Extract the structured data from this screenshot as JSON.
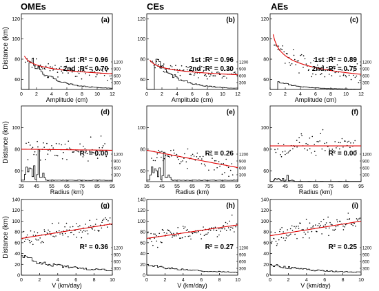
{
  "column_titles": [
    "OMEs",
    "CEs",
    "AEs"
  ],
  "row_ylabel": "Distance  (km)",
  "row_xlabels": [
    "Amplitude  (cm)",
    "Radius  (km)",
    "V  (km/day)"
  ],
  "count_ticks": [
    "300",
    "600",
    "900",
    "1200"
  ],
  "colors": {
    "fit": "#e00000",
    "points": "#000000",
    "hist": "#000000"
  },
  "chart_data": [
    {
      "id": "a",
      "type": "scatter",
      "row": 0,
      "col": 0,
      "panel_label": "(a)",
      "xlabel": "Amplitude  (cm)",
      "xlim": [
        0,
        12
      ],
      "xticks": [
        0,
        2,
        4,
        6,
        8,
        10,
        12
      ],
      "ylim": [
        50,
        125
      ],
      "yticks": [
        60,
        80,
        100,
        120
      ],
      "fit": {
        "kind": "power",
        "a": 78,
        "b": -0.07,
        "x0": 0.4,
        "x1": 12
      },
      "scatter": {
        "seed": 11,
        "n": 80,
        "x0": 0.5,
        "x1": 12,
        "noise": 3.5
      },
      "annotations": [
        "1st :R² = 0.96",
        "2nd :R² = 0.70"
      ],
      "hist": {
        "kind": "amp",
        "peak": 1200
      }
    },
    {
      "id": "b",
      "type": "scatter",
      "row": 0,
      "col": 1,
      "panel_label": "(b)",
      "xlabel": "Amplitude  (cm)",
      "xlim": [
        0,
        12
      ],
      "xticks": [
        0,
        2,
        4,
        6,
        8,
        10,
        12
      ],
      "ylim": [
        50,
        125
      ],
      "yticks": [
        60,
        80,
        100,
        120
      ],
      "fit": {
        "kind": "power",
        "a": 75,
        "b": -0.06,
        "x0": 0.4,
        "x1": 12
      },
      "scatter": {
        "seed": 23,
        "n": 80,
        "x0": 0.5,
        "x1": 12,
        "noise": 3.5
      },
      "annotations": [
        "1st :R² = 0.96",
        "2nd :R² = 0.30"
      ],
      "hist": {
        "kind": "amp",
        "peak": 1200
      }
    },
    {
      "id": "c",
      "type": "scatter",
      "row": 0,
      "col": 2,
      "panel_label": "(c)",
      "xlabel": "Amplitude  (cm)",
      "xlim": [
        0,
        12
      ],
      "xticks": [
        0,
        2,
        4,
        6,
        8,
        10,
        12
      ],
      "ylim": [
        50,
        125
      ],
      "yticks": [
        60,
        80,
        100,
        120
      ],
      "fit": {
        "kind": "power",
        "a": 92,
        "b": -0.14,
        "x0": 0.4,
        "x1": 12
      },
      "scatter": {
        "seed": 37,
        "n": 80,
        "x0": 0.5,
        "x1": 12,
        "noise": 6
      },
      "annotations": [
        "1st :R² = 0.89",
        "2nd :R² = 0.75"
      ],
      "hist": {
        "kind": "amp",
        "peak": 300
      }
    },
    {
      "id": "d",
      "type": "scatter",
      "row": 1,
      "col": 0,
      "panel_label": "(d)",
      "xlabel": "Radius  (km)",
      "xlim": [
        35,
        95
      ],
      "xticks": [
        35,
        45,
        55,
        65,
        75,
        85,
        95
      ],
      "ylim": [
        50,
        120
      ],
      "yticks": [
        60,
        80,
        100
      ],
      "fit": {
        "kind": "linear",
        "y0": 80,
        "y1": 79,
        "x0": 35,
        "x1": 95
      },
      "scatter": {
        "seed": 41,
        "n": 70,
        "x0": 38,
        "x1": 92,
        "noise": 6
      },
      "annotations": [
        "R² = 0.00"
      ],
      "hist": {
        "kind": "radius",
        "peak": 1200
      }
    },
    {
      "id": "e",
      "type": "scatter",
      "row": 1,
      "col": 1,
      "panel_label": "(e)",
      "xlabel": "Radius  (km)",
      "xlim": [
        35,
        95
      ],
      "xticks": [
        35,
        45,
        55,
        65,
        75,
        85,
        95
      ],
      "ylim": [
        50,
        120
      ],
      "yticks": [
        60,
        80,
        100
      ],
      "fit": {
        "kind": "linear",
        "y0": 79,
        "y1": 63,
        "x0": 35,
        "x1": 95
      },
      "scatter": {
        "seed": 53,
        "n": 70,
        "x0": 38,
        "x1": 92,
        "noise": 6
      },
      "annotations": [
        "R² = 0.26"
      ],
      "hist": {
        "kind": "radius",
        "peak": 1200
      }
    },
    {
      "id": "f",
      "type": "scatter",
      "row": 1,
      "col": 2,
      "panel_label": "(f)",
      "xlabel": "Radius  (km)",
      "xlim": [
        35,
        95
      ],
      "xticks": [
        35,
        45,
        55,
        65,
        75,
        85,
        95
      ],
      "ylim": [
        50,
        120
      ],
      "yticks": [
        60,
        80,
        100
      ],
      "fit": {
        "kind": "linear",
        "y0": 83,
        "y1": 83,
        "x0": 35,
        "x1": 95
      },
      "scatter": {
        "seed": 67,
        "n": 70,
        "x0": 38,
        "x1": 92,
        "noise": 7
      },
      "annotations": [
        "R² = 0.00"
      ],
      "hist": {
        "kind": "radius",
        "peak": 250
      }
    },
    {
      "id": "g",
      "type": "scatter",
      "row": 2,
      "col": 0,
      "panel_label": "(g)",
      "xlabel": "V  (km/day)",
      "xlim": [
        0,
        10
      ],
      "xticks": [
        0,
        2,
        4,
        6,
        8,
        10
      ],
      "ylim": [
        0,
        140
      ],
      "yticks": [
        0,
        20,
        40,
        60,
        80,
        100,
        120,
        140
      ],
      "fit": {
        "kind": "linear",
        "y0": 68,
        "y1": 95,
        "x0": 0,
        "x1": 10
      },
      "scatter": {
        "seed": 71,
        "n": 100,
        "x0": 0.1,
        "x1": 9.9,
        "noise": 9
      },
      "annotations": [
        "R² = 0.36"
      ],
      "hist": {
        "kind": "vel",
        "peak": 1200
      }
    },
    {
      "id": "h",
      "type": "scatter",
      "row": 2,
      "col": 1,
      "panel_label": "(h)",
      "xlabel": "V  (km/day)",
      "xlim": [
        0,
        10
      ],
      "xticks": [
        0,
        2,
        4,
        6,
        8,
        10
      ],
      "ylim": [
        0,
        140
      ],
      "yticks": [
        0,
        20,
        40,
        60,
        80,
        100,
        120,
        140
      ],
      "fit": {
        "kind": "linear",
        "y0": 68,
        "y1": 93,
        "x0": 0,
        "x1": 10
      },
      "scatter": {
        "seed": 83,
        "n": 100,
        "x0": 0.1,
        "x1": 9.9,
        "noise": 9
      },
      "annotations": [
        "R² = 0.27"
      ],
      "hist": {
        "kind": "vel",
        "peak": 700
      }
    },
    {
      "id": "i",
      "type": "scatter",
      "row": 2,
      "col": 2,
      "panel_label": "(i)",
      "xlabel": "V  (km/day)",
      "xlim": [
        0,
        10
      ],
      "xticks": [
        0,
        2,
        4,
        6,
        8,
        10
      ],
      "ylim": [
        0,
        140
      ],
      "yticks": [
        0,
        20,
        40,
        60,
        80,
        100,
        120,
        140
      ],
      "fit": {
        "kind": "linear",
        "y0": 73,
        "y1": 100,
        "x0": 0,
        "x1": 10
      },
      "scatter": {
        "seed": 97,
        "n": 100,
        "x0": 0.1,
        "x1": 9.9,
        "noise": 10
      },
      "annotations": [
        "R² = 0.25"
      ],
      "hist": {
        "kind": "vel",
        "peak": 700
      }
    }
  ]
}
